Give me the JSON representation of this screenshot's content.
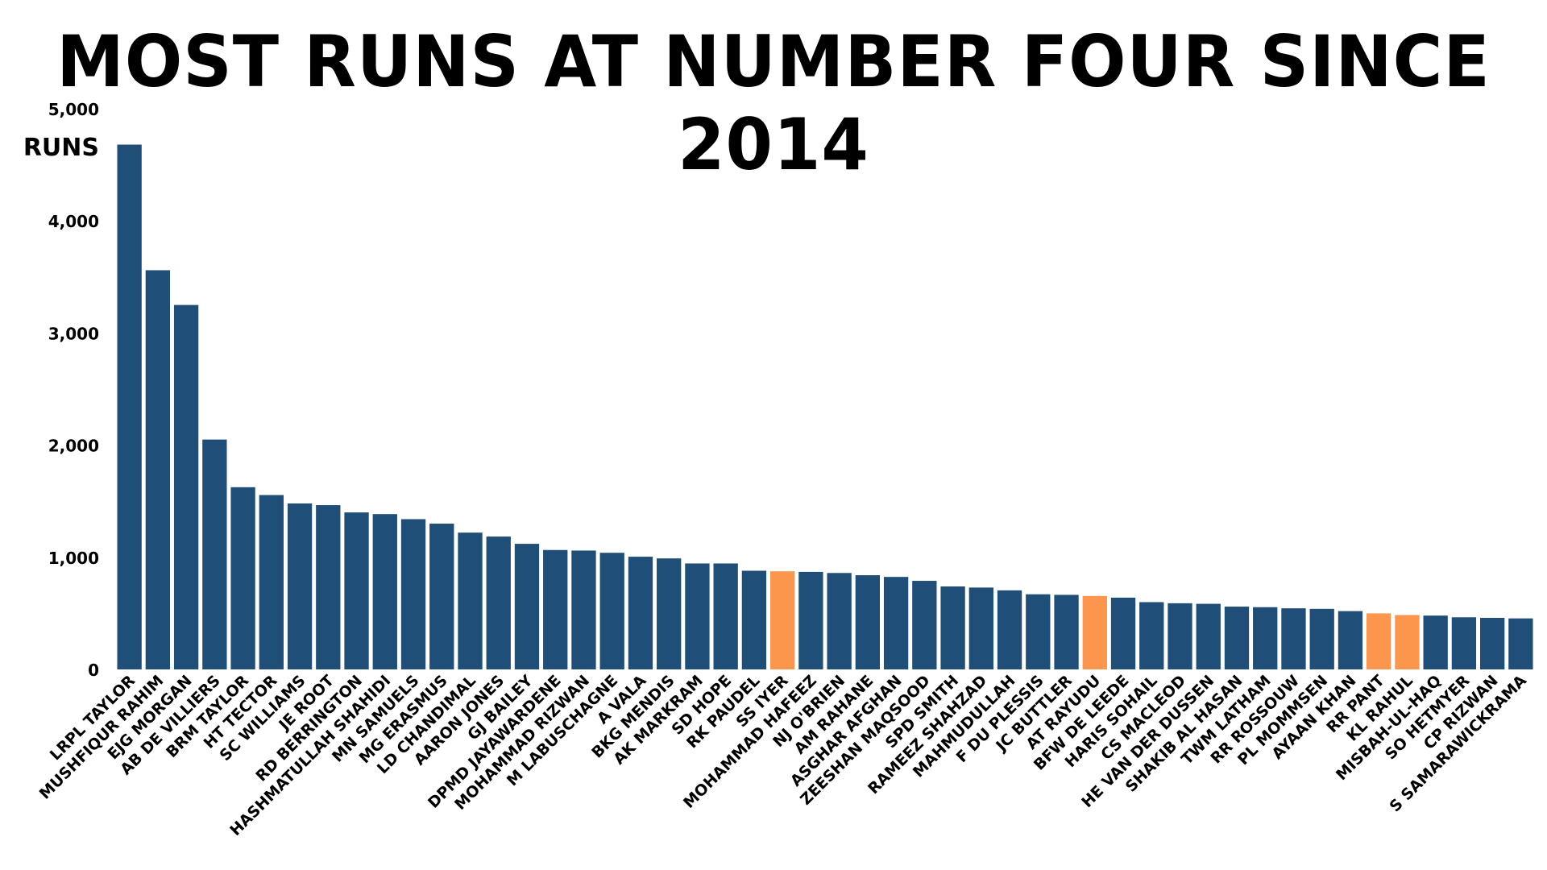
{
  "chart_data": {
    "type": "bar",
    "title": "MOST RUNS AT NUMBER FOUR SINCE 2014",
    "ylabel": "RUNS",
    "xlabel": "",
    "ylim": [
      0,
      5000
    ],
    "yticks": [
      0,
      1000,
      2000,
      3000,
      4000,
      5000
    ],
    "ytick_labels": [
      "0",
      "1,000",
      "2,000",
      "3,000",
      "4,000",
      "5,000"
    ],
    "grid": false,
    "legend": "none",
    "colors": {
      "default": "#1f4e79",
      "highlight": "#fb964c"
    },
    "categories": [
      "LRPL TAYLOR",
      "MUSHFIQUR RAHIM",
      "EJG MORGAN",
      "AB DE VILLIERS",
      "BRM TAYLOR",
      "HT TECTOR",
      "SC WILLIAMS",
      "JE ROOT",
      "RD BERRINGTON",
      "HASHMATULLAH SHAHIDI",
      "MN SAMUELS",
      "MG ERASMUS",
      "LD CHANDIMAL",
      "AARON JONES",
      "GJ BAILEY",
      "DPMD JAYAWARDENE",
      "MOHAMMAD RIZWAN",
      "M LABUSCHAGNE",
      "A VALA",
      "BKG MENDIS",
      "AK MARKRAM",
      "SD HOPE",
      "RK PAUDEL",
      "SS IYER",
      "MOHAMMAD HAFEEZ",
      "NJ O'BRIEN",
      "AM RAHANE",
      "ASGHAR AFGHAN",
      "ZEESHAN MAQSOOD",
      "SPD SMITH",
      "RAMEEZ SHAHZAD",
      "MAHMUDULLAH",
      "F DU PLESSIS",
      "JC BUTTLER",
      "AT RAYUDU",
      "BFW DE LEEDE",
      "HARIS SOHAIL",
      "CS MACLEOD",
      "HE VAN DER DUSSEN",
      "SHAKIB AL HASAN",
      "TWM LATHAM",
      "RR ROSSOUW",
      "PL MOMMSEN",
      "AYAAN KHAN",
      "RR PANT",
      "KL RAHUL",
      "MISBAH-UL-HAQ",
      "SO HETMYER",
      "CP RIZWAN",
      "S SAMARAWICKRAMA"
    ],
    "values": [
      4680,
      3560,
      3250,
      2050,
      1625,
      1555,
      1480,
      1465,
      1400,
      1385,
      1340,
      1300,
      1220,
      1185,
      1120,
      1065,
      1060,
      1040,
      1005,
      990,
      945,
      945,
      880,
      875,
      870,
      860,
      840,
      825,
      790,
      740,
      730,
      705,
      670,
      665,
      655,
      640,
      600,
      590,
      585,
      560,
      555,
      545,
      540,
      520,
      500,
      485,
      480,
      465,
      460,
      455
    ],
    "highlighted": [
      "SS IYER",
      "AT RAYUDU",
      "RR PANT",
      "KL RAHUL"
    ]
  }
}
